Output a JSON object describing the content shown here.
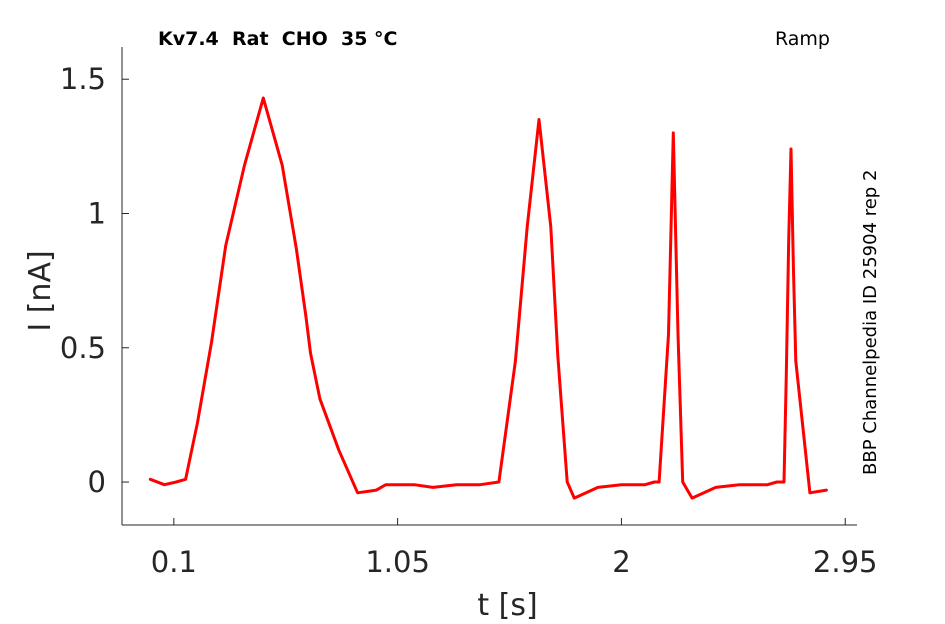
{
  "chart_data": {
    "type": "line",
    "title": "Kv7.4  Rat  CHO  35 °C",
    "protocol": "Ramp",
    "side_label": "BBP Channelpedia ID 25904 rep 2",
    "xlabel": "t [s]",
    "ylabel": "I [nA]",
    "xlim": [
      -0.12,
      3.0
    ],
    "ylim": [
      -0.16,
      1.62
    ],
    "xticks": [
      0.1,
      1.05,
      2,
      2.95
    ],
    "xtick_labels": [
      "0.1",
      "1.05",
      "2",
      "2.95"
    ],
    "yticks": [
      0,
      0.5,
      1,
      1.5
    ],
    "ytick_labels": [
      "0",
      "0.5",
      "1",
      "1.5"
    ],
    "grid": false,
    "color": "#ff0000",
    "series": [
      {
        "x": [
          0.0,
          0.06,
          0.11,
          0.15,
          0.2,
          0.26,
          0.32,
          0.4,
          0.48,
          0.56,
          0.62,
          0.66,
          0.68,
          0.72,
          0.8,
          0.88,
          0.96,
          1.0,
          1.04,
          1.07,
          1.12,
          1.2,
          1.3,
          1.4,
          1.48,
          1.55,
          1.6,
          1.65,
          1.7,
          1.73,
          1.77,
          1.8,
          1.9,
          2.0,
          2.1,
          2.14,
          2.16,
          2.2,
          2.22,
          2.24,
          2.26,
          2.3,
          2.4,
          2.5,
          2.62,
          2.66,
          2.69,
          2.7,
          2.71,
          2.72,
          2.73,
          2.74,
          2.8,
          2.87
        ],
        "y": [
          0.01,
          -0.01,
          0.0,
          0.01,
          0.22,
          0.52,
          0.88,
          1.18,
          1.43,
          1.18,
          0.87,
          0.62,
          0.48,
          0.31,
          0.12,
          -0.04,
          -0.03,
          -0.01,
          -0.01,
          -0.01,
          -0.01,
          -0.02,
          -0.01,
          -0.01,
          0.0,
          0.45,
          0.95,
          1.35,
          0.95,
          0.47,
          0.0,
          -0.06,
          -0.02,
          -0.01,
          -0.01,
          0.0,
          0.0,
          0.55,
          1.3,
          0.55,
          0.0,
          -0.06,
          -0.02,
          -0.01,
          -0.01,
          0.0,
          0.0,
          0.4,
          0.9,
          1.24,
          0.8,
          0.45,
          -0.04,
          -0.03
        ]
      }
    ]
  }
}
